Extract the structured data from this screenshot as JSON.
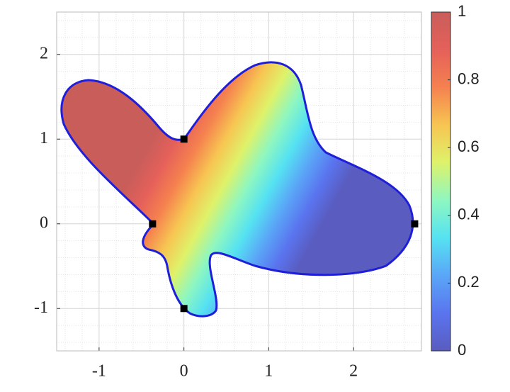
{
  "chart_data": {
    "type": "contour",
    "xlim": [
      -1.5,
      2.8
    ],
    "ylim": [
      -1.5,
      2.5
    ],
    "xticks": [
      -1,
      0,
      1,
      2
    ],
    "yticks": [
      -1,
      0,
      1,
      2
    ],
    "grid": true,
    "minor_grid": true,
    "colorbar": {
      "lim": [
        0,
        1
      ],
      "ticks": [
        0,
        0.2,
        0.4,
        0.6,
        0.8,
        1
      ]
    },
    "colormap": [
      "#5a5cbf",
      "#5a74ef",
      "#5aa6f7",
      "#55e2f2",
      "#8ef7c0",
      "#def26a",
      "#f7c552",
      "#f5814f",
      "#e5605a",
      "#c95d5a"
    ],
    "boundary_color": "#1f1fd9",
    "corners": {
      "x": [
        0,
        -0.37,
        2.72,
        0
      ],
      "y": [
        1,
        0,
        0,
        -1
      ]
    }
  }
}
